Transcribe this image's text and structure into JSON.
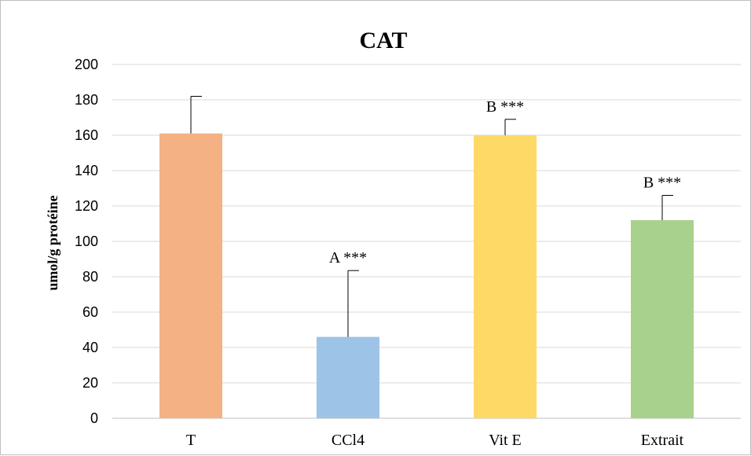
{
  "chart_data": {
    "type": "bar",
    "title": "CAT",
    "xlabel": "",
    "ylabel": "umol/g protéine",
    "categories": [
      "T",
      "CCl4",
      "Vit E",
      "Extrait"
    ],
    "values": [
      161,
      46,
      160,
      112
    ],
    "error_plus": [
      21,
      37.5,
      9,
      14
    ],
    "annotations": [
      "",
      "A ***",
      "B ***",
      "B ***"
    ],
    "colors": [
      "#F4B183",
      "#9DC3E6",
      "#FFD966",
      "#A9D18E"
    ],
    "ylim": [
      0,
      200
    ],
    "yticks": [
      0,
      20,
      40,
      60,
      80,
      100,
      120,
      140,
      160,
      180,
      200
    ],
    "grid": true,
    "legend": "none"
  }
}
